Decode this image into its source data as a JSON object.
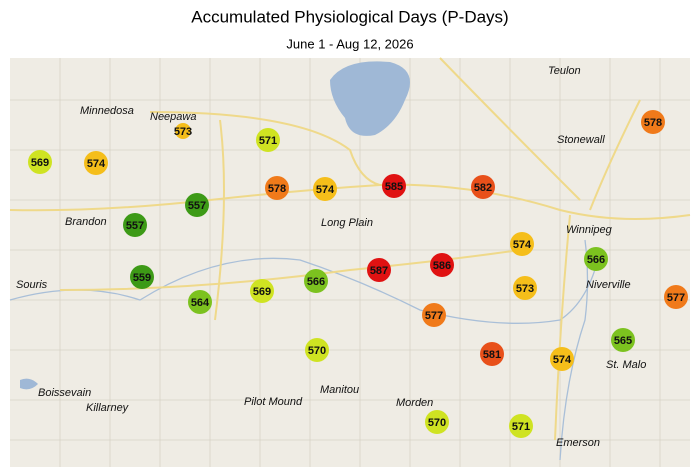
{
  "title": "Accumulated Physiological Days (P-Days)",
  "subtitle": "June 1 - Aug 12, 2026",
  "places": [
    "Teulon",
    "Minnedosa",
    "Neepawa",
    "Stonewall",
    "Winnipeg",
    "Brandon",
    "Long Plain",
    "Souris",
    "Niverville",
    "St. Malo",
    "Boissevain",
    "Killarney",
    "Pilot Mound",
    "Manitou",
    "Morden",
    "Emerson"
  ],
  "stations": [
    {
      "value": 569,
      "color": "#cfe322"
    },
    {
      "value": 574,
      "color": "#f5be1a"
    },
    {
      "value": 573,
      "color": "#f5be1a"
    },
    {
      "value": 571,
      "color": "#cfe322"
    },
    {
      "value": 557,
      "color": "#3d9a16"
    },
    {
      "value": 557,
      "color": "#3d9a16"
    },
    {
      "value": 578,
      "color": "#f07a1a"
    },
    {
      "value": 574,
      "color": "#f5be1a"
    },
    {
      "value": 585,
      "color": "#e01212"
    },
    {
      "value": 582,
      "color": "#e8501a"
    },
    {
      "value": 578,
      "color": "#f07a1a"
    },
    {
      "value": 574,
      "color": "#f5be1a"
    },
    {
      "value": 566,
      "color": "#7cc21f"
    },
    {
      "value": 559,
      "color": "#3d9a16"
    },
    {
      "value": 564,
      "color": "#7cc21f"
    },
    {
      "value": 569,
      "color": "#cfe322"
    },
    {
      "value": 566,
      "color": "#7cc21f"
    },
    {
      "value": 587,
      "color": "#e01212"
    },
    {
      "value": 586,
      "color": "#e01212"
    },
    {
      "value": 573,
      "color": "#f5be1a"
    },
    {
      "value": 577,
      "color": "#f07a1a"
    },
    {
      "value": 577,
      "color": "#f07a1a"
    },
    {
      "value": 581,
      "color": "#e8501a"
    },
    {
      "value": 574,
      "color": "#f5be1a"
    },
    {
      "value": 565,
      "color": "#7cc21f"
    },
    {
      "value": 570,
      "color": "#cfe322"
    },
    {
      "value": 570,
      "color": "#cfe322"
    },
    {
      "value": 571,
      "color": "#cfe322"
    }
  ]
}
